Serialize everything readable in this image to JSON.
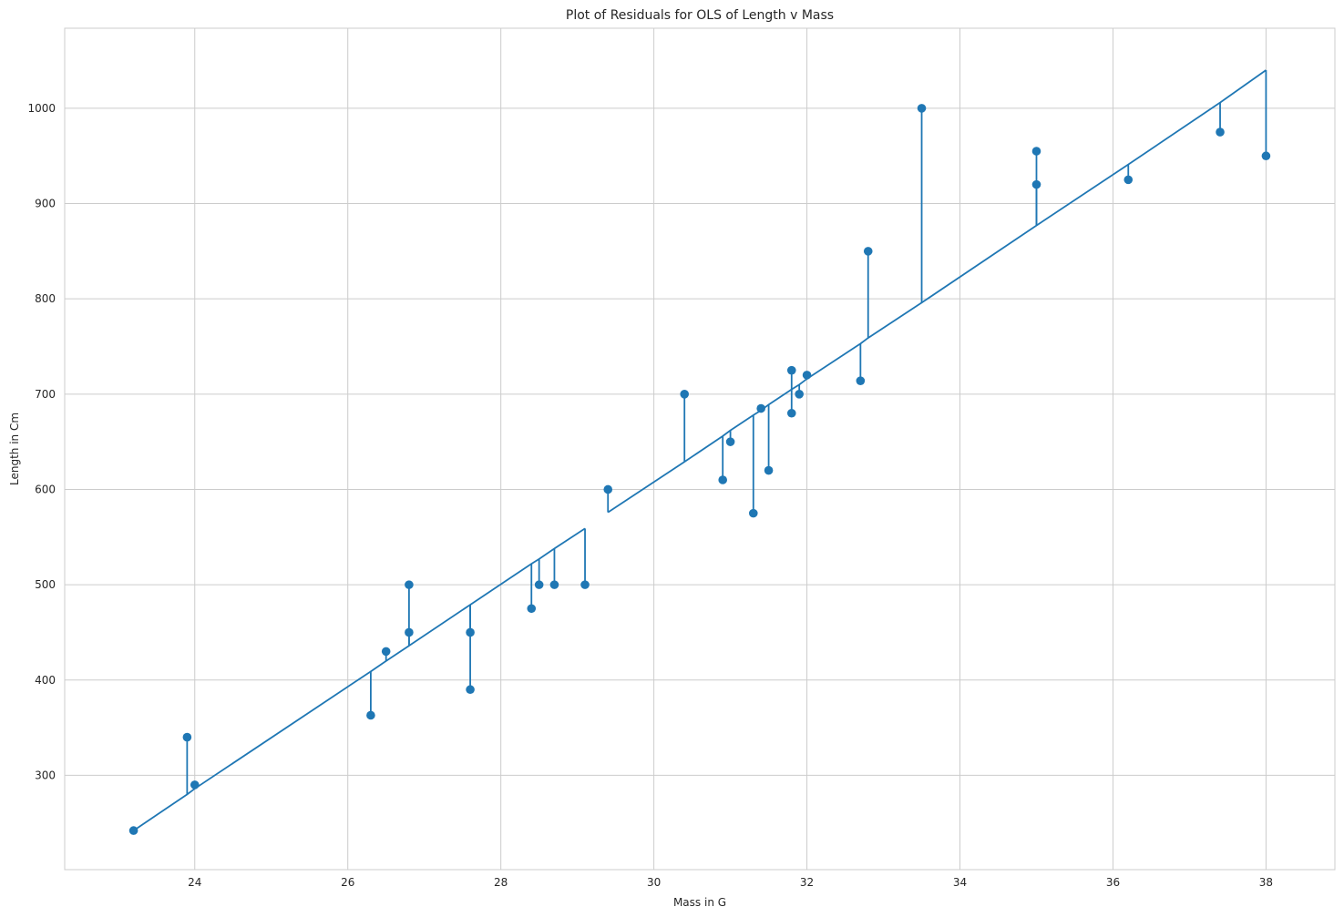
{
  "chart_data": {
    "type": "scatter",
    "title": "Plot of Residuals for OLS of Length v Mass",
    "xlabel": "Mass in G",
    "ylabel": "Length in Cm",
    "xlim": [
      22.3,
      38.9
    ],
    "ylim": [
      201,
      1084
    ],
    "xticks": [
      24,
      26,
      28,
      30,
      32,
      34,
      36,
      38
    ],
    "yticks": [
      300,
      400,
      500,
      600,
      700,
      800,
      900,
      1000
    ],
    "grid": true,
    "color": "#1f77b4",
    "points": [
      {
        "x": 23.2,
        "y": 242
      },
      {
        "x": 23.9,
        "y": 340
      },
      {
        "x": 24.0,
        "y": 290
      },
      {
        "x": 26.3,
        "y": 363
      },
      {
        "x": 26.5,
        "y": 430
      },
      {
        "x": 26.8,
        "y": 450
      },
      {
        "x": 26.8,
        "y": 500
      },
      {
        "x": 27.6,
        "y": 390
      },
      {
        "x": 27.6,
        "y": 450
      },
      {
        "x": 28.4,
        "y": 475
      },
      {
        "x": 28.5,
        "y": 500
      },
      {
        "x": 28.7,
        "y": 500
      },
      {
        "x": 29.1,
        "y": 500
      },
      {
        "x": 29.4,
        "y": 600
      },
      {
        "x": 30.4,
        "y": 700
      },
      {
        "x": 30.9,
        "y": 610
      },
      {
        "x": 31.0,
        "y": 650
      },
      {
        "x": 31.3,
        "y": 575
      },
      {
        "x": 31.4,
        "y": 685
      },
      {
        "x": 31.5,
        "y": 620
      },
      {
        "x": 31.8,
        "y": 680
      },
      {
        "x": 31.8,
        "y": 725
      },
      {
        "x": 31.9,
        "y": 700
      },
      {
        "x": 32.0,
        "y": 720
      },
      {
        "x": 32.7,
        "y": 714
      },
      {
        "x": 32.8,
        "y": 850
      },
      {
        "x": 33.5,
        "y": 1000
      },
      {
        "x": 35.0,
        "y": 920
      },
      {
        "x": 35.0,
        "y": 955
      },
      {
        "x": 36.2,
        "y": 925
      },
      {
        "x": 37.4,
        "y": 975
      },
      {
        "x": 38.0,
        "y": 950
      }
    ],
    "fitted": [
      {
        "x": 23.2,
        "y": 242
      },
      {
        "x": 23.9,
        "y": 280
      },
      {
        "x": 24.0,
        "y": 286
      },
      {
        "x": 26.3,
        "y": 409
      },
      {
        "x": 26.5,
        "y": 420
      },
      {
        "x": 26.8,
        "y": 436
      },
      {
        "x": 27.6,
        "y": 479
      },
      {
        "x": 28.4,
        "y": 522
      },
      {
        "x": 28.5,
        "y": 527
      },
      {
        "x": 28.7,
        "y": 538
      },
      {
        "x": 29.1,
        "y": 559
      },
      {
        "x": 29.4,
        "y": 576
      },
      {
        "x": 30.4,
        "y": 629
      },
      {
        "x": 30.9,
        "y": 656
      },
      {
        "x": 31.0,
        "y": 662
      },
      {
        "x": 31.3,
        "y": 678
      },
      {
        "x": 31.4,
        "y": 683
      },
      {
        "x": 31.5,
        "y": 689
      },
      {
        "x": 31.8,
        "y": 705
      },
      {
        "x": 31.9,
        "y": 710
      },
      {
        "x": 32.0,
        "y": 716
      },
      {
        "x": 32.7,
        "y": 753
      },
      {
        "x": 32.8,
        "y": 759
      },
      {
        "x": 33.5,
        "y": 796
      },
      {
        "x": 35.0,
        "y": 877
      },
      {
        "x": 36.2,
        "y": 941
      },
      {
        "x": 37.4,
        "y": 1006
      },
      {
        "x": 38.0,
        "y": 1040
      }
    ],
    "series_order": [
      "fitted_line",
      "residual_lines",
      "points"
    ]
  }
}
